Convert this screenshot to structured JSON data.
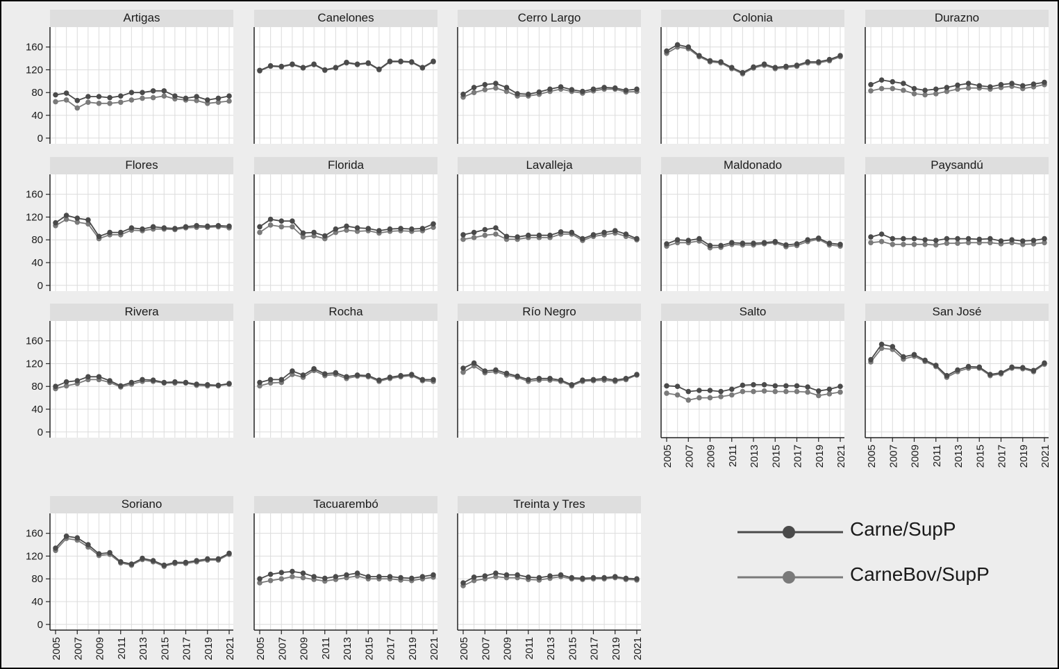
{
  "legend": [
    {
      "label": "Carne/SupP",
      "color": "#4a4a4a"
    },
    {
      "label": "CarneBov/SupP",
      "color": "#7a7a7a"
    }
  ],
  "chart_data": {
    "type": "line",
    "facet_layout": "wrap",
    "x": [
      2005,
      2006,
      2007,
      2008,
      2009,
      2010,
      2011,
      2012,
      2013,
      2014,
      2015,
      2016,
      2017,
      2018,
      2019,
      2020,
      2021
    ],
    "x_tick_labels": [
      "2005",
      "2007",
      "2009",
      "2011",
      "2013",
      "2015",
      "2017",
      "2019",
      "2021"
    ],
    "y_ticks": [
      0,
      40,
      80,
      120,
      160
    ],
    "ylim": [
      -10,
      195
    ],
    "grid": true,
    "legend_placement": "bottom-right",
    "panels": [
      {
        "title": "Artigas",
        "series": [
          {
            "name": "Carne/SupP",
            "values": [
              76,
              79,
              66,
              73,
              73,
              71,
              74,
              80,
              80,
              83,
              83,
              74,
              70,
              73,
              67,
              70,
              74
            ]
          },
          {
            "name": "CarneBov/SupP",
            "values": [
              64,
              67,
              53,
              63,
              61,
              61,
              63,
              67,
              70,
              71,
              74,
              69,
              67,
              66,
              61,
              63,
              65
            ]
          }
        ]
      },
      {
        "title": "Canelones",
        "series": [
          {
            "name": "Carne/SupP",
            "values": [
              119,
              127,
              126,
              130,
              124,
              130,
              120,
              124,
              133,
              130,
              132,
              121,
              135,
              135,
              134,
              124,
              135
            ]
          },
          {
            "name": "CarneBov/SupP",
            "values": [
              118,
              126,
              125,
              129,
              123,
              129,
              119,
              123,
              132,
              129,
              131,
              120,
              134,
              134,
              133,
              123,
              134
            ]
          }
        ]
      },
      {
        "title": "Cerro Largo",
        "series": [
          {
            "name": "Carne/SupP",
            "values": [
              77,
              89,
              94,
              96,
              89,
              78,
              77,
              81,
              86,
              90,
              85,
              82,
              86,
              89,
              88,
              84,
              86
            ]
          },
          {
            "name": "CarneBov/SupP",
            "values": [
              72,
              80,
              85,
              88,
              82,
              74,
              74,
              77,
              82,
              86,
              82,
              79,
              83,
              86,
              86,
              81,
              82
            ]
          }
        ]
      },
      {
        "title": "Colonia",
        "series": [
          {
            "name": "Carne/SupP",
            "values": [
              153,
              164,
              160,
              145,
              136,
              134,
              124,
              115,
              125,
              130,
              124,
              126,
              128,
              134,
              134,
              138,
              145
            ]
          },
          {
            "name": "CarneBov/SupP",
            "values": [
              149,
              160,
              157,
              143,
              134,
              132,
              122,
              113,
              123,
              128,
              122,
              124,
              126,
              132,
              132,
              136,
              143
            ]
          }
        ]
      },
      {
        "title": "Durazno",
        "series": [
          {
            "name": "Carne/SupP",
            "values": [
              94,
              102,
              99,
              96,
              87,
              84,
              86,
              89,
              93,
              96,
              92,
              90,
              94,
              96,
              92,
              95,
              98
            ]
          },
          {
            "name": "CarneBov/SupP",
            "values": [
              83,
              87,
              87,
              84,
              78,
              76,
              78,
              82,
              86,
              88,
              88,
              86,
              89,
              91,
              87,
              90,
              94
            ]
          }
        ]
      },
      {
        "title": "Flores",
        "series": [
          {
            "name": "Carne/SupP",
            "values": [
              110,
              123,
              118,
              115,
              86,
              93,
              93,
              101,
              99,
              103,
              101,
              100,
              103,
              105,
              104,
              105,
              104
            ]
          },
          {
            "name": "CarneBov/SupP",
            "values": [
              105,
              116,
              111,
              108,
              82,
              89,
              89,
              97,
              96,
              99,
              99,
              98,
              101,
              102,
              102,
              103,
              101
            ]
          }
        ]
      },
      {
        "title": "Florida",
        "series": [
          {
            "name": "Carne/SupP",
            "values": [
              103,
              116,
              113,
              113,
              92,
              93,
              87,
              99,
              104,
              101,
              100,
              96,
              99,
              100,
              99,
              100,
              108
            ]
          },
          {
            "name": "CarneBov/SupP",
            "values": [
              93,
              106,
              103,
              103,
              85,
              87,
              82,
              93,
              97,
              95,
              96,
              92,
              95,
              96,
              95,
              96,
              102
            ]
          }
        ]
      },
      {
        "title": "Lavalleja",
        "series": [
          {
            "name": "Carne/SupP",
            "values": [
              89,
              93,
              98,
              101,
              86,
              85,
              88,
              88,
              88,
              94,
              93,
              82,
              89,
              93,
              96,
              90,
              82
            ]
          },
          {
            "name": "CarneBov/SupP",
            "values": [
              81,
              84,
              88,
              90,
              81,
              81,
              84,
              84,
              84,
              90,
              90,
              79,
              86,
              89,
              92,
              86,
              80
            ]
          }
        ]
      },
      {
        "title": "Maldonado",
        "series": [
          {
            "name": "Carne/SupP",
            "values": [
              73,
              80,
              79,
              82,
              70,
              70,
              75,
              74,
              74,
              75,
              77,
              71,
              73,
              80,
              83,
              74,
              72
            ]
          },
          {
            "name": "CarneBov/SupP",
            "values": [
              69,
              75,
              75,
              78,
              66,
              67,
              72,
              71,
              71,
              73,
              75,
              68,
              70,
              77,
              81,
              71,
              69
            ]
          }
        ]
      },
      {
        "title": "Paysandú",
        "series": [
          {
            "name": "Carne/SupP",
            "values": [
              85,
              90,
              82,
              82,
              82,
              80,
              79,
              82,
              82,
              82,
              81,
              82,
              78,
              80,
              78,
              79,
              82
            ]
          },
          {
            "name": "CarneBov/SupP",
            "values": [
              75,
              77,
              72,
              72,
              72,
              72,
              71,
              74,
              74,
              75,
              75,
              75,
              73,
              75,
              72,
              73,
              75
            ]
          }
        ]
      },
      {
        "title": "Rivera",
        "series": [
          {
            "name": "Carne/SupP",
            "values": [
              80,
              88,
              90,
              97,
              97,
              90,
              81,
              87,
              92,
              91,
              87,
              88,
              87,
              84,
              83,
              82,
              85
            ]
          },
          {
            "name": "CarneBov/SupP",
            "values": [
              76,
              81,
              85,
              92,
              92,
              87,
              79,
              84,
              89,
              89,
              86,
              86,
              86,
              82,
              81,
              81,
              84
            ]
          }
        ]
      },
      {
        "title": "Rocha",
        "series": [
          {
            "name": "Carne/SupP",
            "values": [
              87,
              92,
              92,
              107,
              100,
              111,
              102,
              104,
              97,
              100,
              99,
              91,
              96,
              99,
              101,
              92,
              92
            ]
          },
          {
            "name": "CarneBov/SupP",
            "values": [
              81,
              86,
              87,
              101,
              96,
              108,
              99,
              101,
              94,
              98,
              97,
              89,
              94,
              97,
              99,
              90,
              89
            ]
          }
        ]
      },
      {
        "title": "Río Negro",
        "series": [
          {
            "name": "Carne/SupP",
            "values": [
              112,
              121,
              107,
              109,
              103,
              98,
              92,
              94,
              94,
              91,
              83,
              91,
              92,
              94,
              91,
              94,
              101
            ]
          },
          {
            "name": "CarneBov/SupP",
            "values": [
              105,
              116,
              104,
              106,
              100,
              96,
              89,
              91,
              91,
              89,
              81,
              89,
              90,
              91,
              89,
              92,
              100
            ]
          }
        ]
      },
      {
        "title": "Salto",
        "series": [
          {
            "name": "Carne/SupP",
            "values": [
              81,
              80,
              71,
              73,
              73,
              71,
              75,
              82,
              83,
              83,
              81,
              81,
              81,
              79,
              72,
              75,
              80
            ]
          },
          {
            "name": "CarneBov/SupP",
            "values": [
              68,
              65,
              56,
              60,
              60,
              62,
              65,
              71,
              71,
              72,
              71,
              71,
              71,
              70,
              64,
              67,
              70
            ]
          }
        ]
      },
      {
        "title": "San José",
        "series": [
          {
            "name": "Carne/SupP",
            "values": [
              127,
              154,
              150,
              132,
              136,
              126,
              117,
              99,
              109,
              115,
              114,
              101,
              104,
              114,
              113,
              108,
              121
            ]
          },
          {
            "name": "CarneBov/SupP",
            "values": [
              123,
              147,
              145,
              128,
              133,
              124,
              115,
              96,
              106,
              112,
              112,
              99,
              102,
              112,
              111,
              106,
              119
            ]
          }
        ]
      },
      {
        "title": "Soriano",
        "series": [
          {
            "name": "Carne/SupP",
            "values": [
              134,
              155,
              152,
              140,
              124,
              126,
              110,
              106,
              116,
              112,
              104,
              109,
              109,
              112,
              115,
              115,
              125
            ]
          },
          {
            "name": "CarneBov/SupP",
            "values": [
              130,
              151,
              148,
              136,
              121,
              123,
              108,
              104,
              114,
              110,
              102,
              107,
              107,
              110,
              113,
              113,
              123
            ]
          }
        ]
      },
      {
        "title": "Tacuarembó",
        "series": [
          {
            "name": "Carne/SupP",
            "values": [
              80,
              88,
              91,
              93,
              90,
              84,
              81,
              84,
              87,
              90,
              84,
              84,
              84,
              82,
              81,
              84,
              87
            ]
          },
          {
            "name": "CarneBov/SupP",
            "values": [
              73,
              77,
              80,
              84,
              82,
              79,
              76,
              79,
              82,
              85,
              80,
              80,
              80,
              78,
              77,
              80,
              83
            ]
          }
        ]
      },
      {
        "title": "Treinta y Tres",
        "series": [
          {
            "name": "Carne/SupP",
            "values": [
              73,
              83,
              85,
              90,
              87,
              87,
              83,
              82,
              85,
              87,
              82,
              81,
              82,
              82,
              84,
              81,
              80
            ]
          },
          {
            "name": "CarneBov/SupP",
            "values": [
              68,
              77,
              80,
              84,
              82,
              82,
              79,
              78,
              81,
              84,
              80,
              79,
              80,
              80,
              82,
              79,
              78
            ]
          }
        ]
      }
    ]
  }
}
